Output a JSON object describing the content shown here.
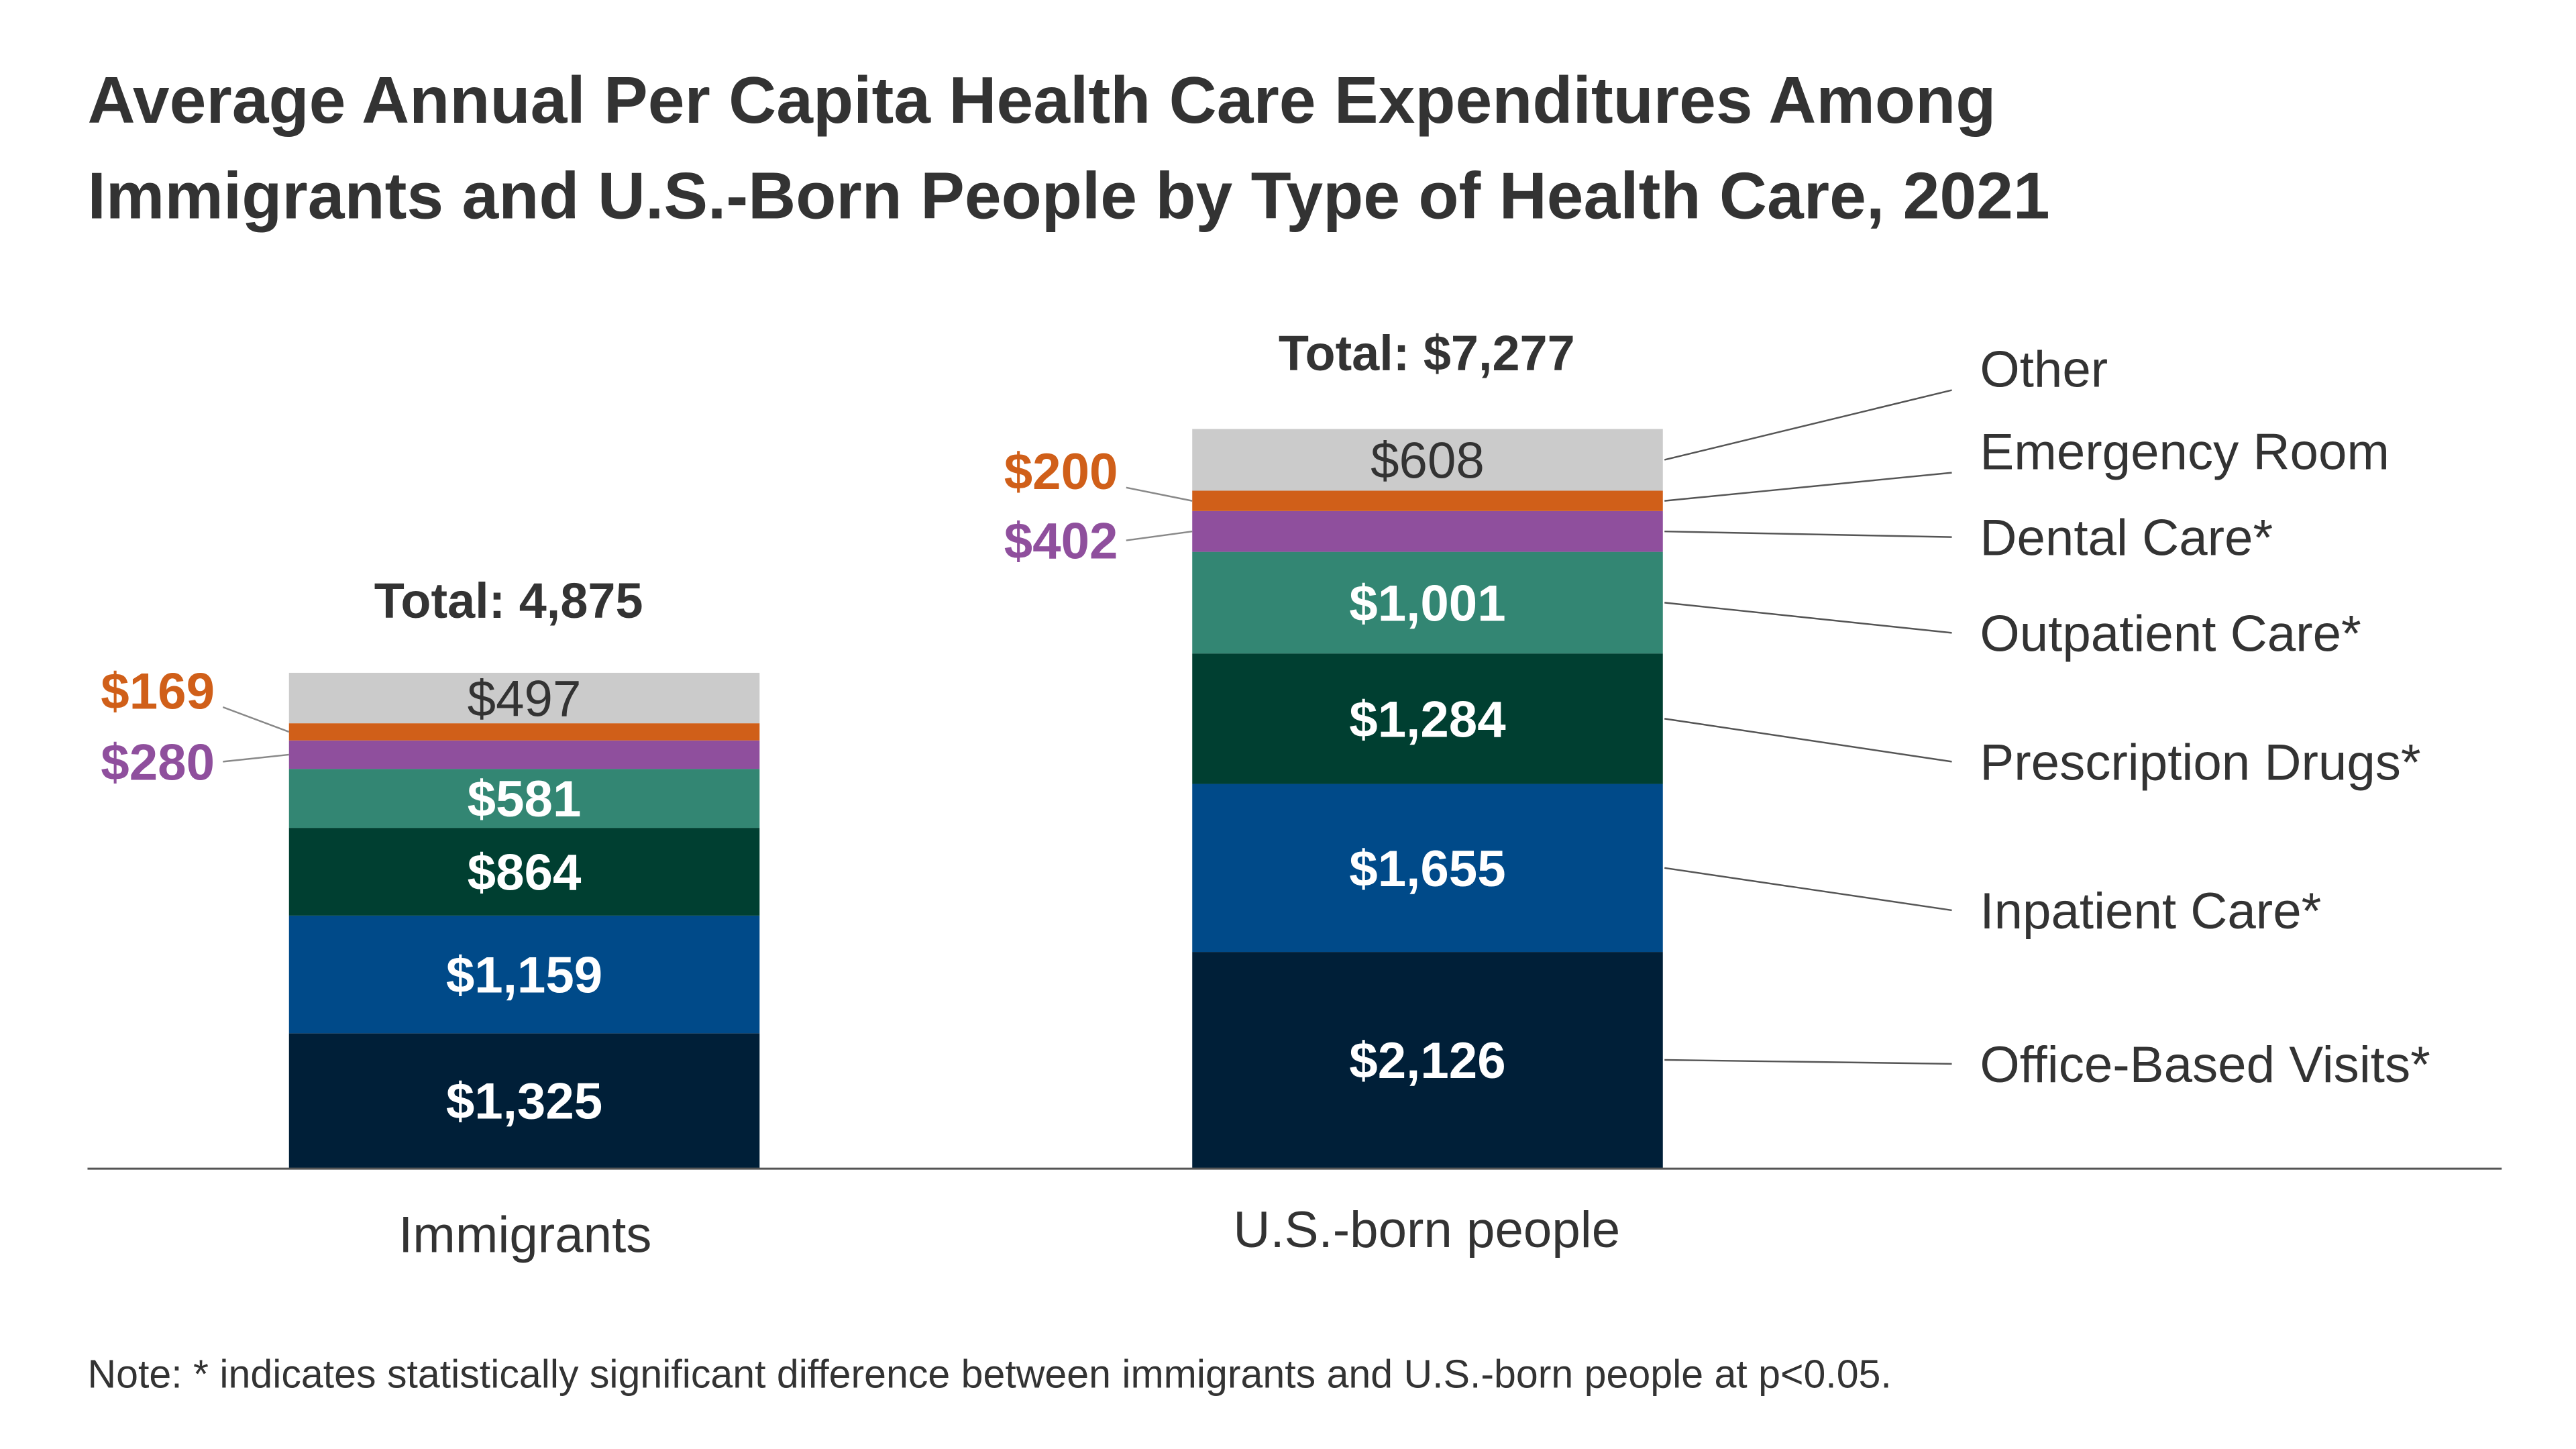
{
  "chart_data": {
    "type": "bar",
    "stacked": true,
    "title_lines": [
      "Average Annual Per Capita Health Care Expenditures Among",
      "Immigrants and U.S.-Born People by Type of Health Care, 2021"
    ],
    "categories": [
      "Immigrants",
      "U.S.-born people"
    ],
    "totals": [
      "Total: 4,875",
      "Total: $7,277"
    ],
    "series": [
      {
        "name": "Office-Based Visits*",
        "color": "#001f38",
        "values": [
          1325,
          2126
        ],
        "labels": [
          "$1,325",
          "$2,126"
        ]
      },
      {
        "name": "Inpatient Care*",
        "color": "#004a89",
        "values": [
          1159,
          1655
        ],
        "labels": [
          "$1,159",
          "$1,655"
        ]
      },
      {
        "name": "Prescription Drugs*",
        "color": "#003f31",
        "values": [
          864,
          1284
        ],
        "labels": [
          "$864",
          "$1,284"
        ]
      },
      {
        "name": "Outpatient Care*",
        "color": "#338673",
        "values": [
          581,
          1001
        ],
        "labels": [
          "$581",
          "$1,001"
        ]
      },
      {
        "name": "Dental Care*",
        "color": "#8f4f9d",
        "values": [
          280,
          402
        ],
        "labels": [
          "$280",
          "$402"
        ]
      },
      {
        "name": "Emergency Room",
        "color": "#d05f19",
        "values": [
          169,
          200
        ],
        "labels": [
          "$169",
          "$200"
        ]
      },
      {
        "name": "Other",
        "color": "#cbcbcb",
        "values": [
          497,
          608
        ],
        "labels": [
          "$497",
          "$608"
        ]
      }
    ],
    "legend_placement": "right",
    "grid": false,
    "note": "Note: * indicates statistically significant difference between immigrants and U.S.-born people at p<0.05."
  }
}
